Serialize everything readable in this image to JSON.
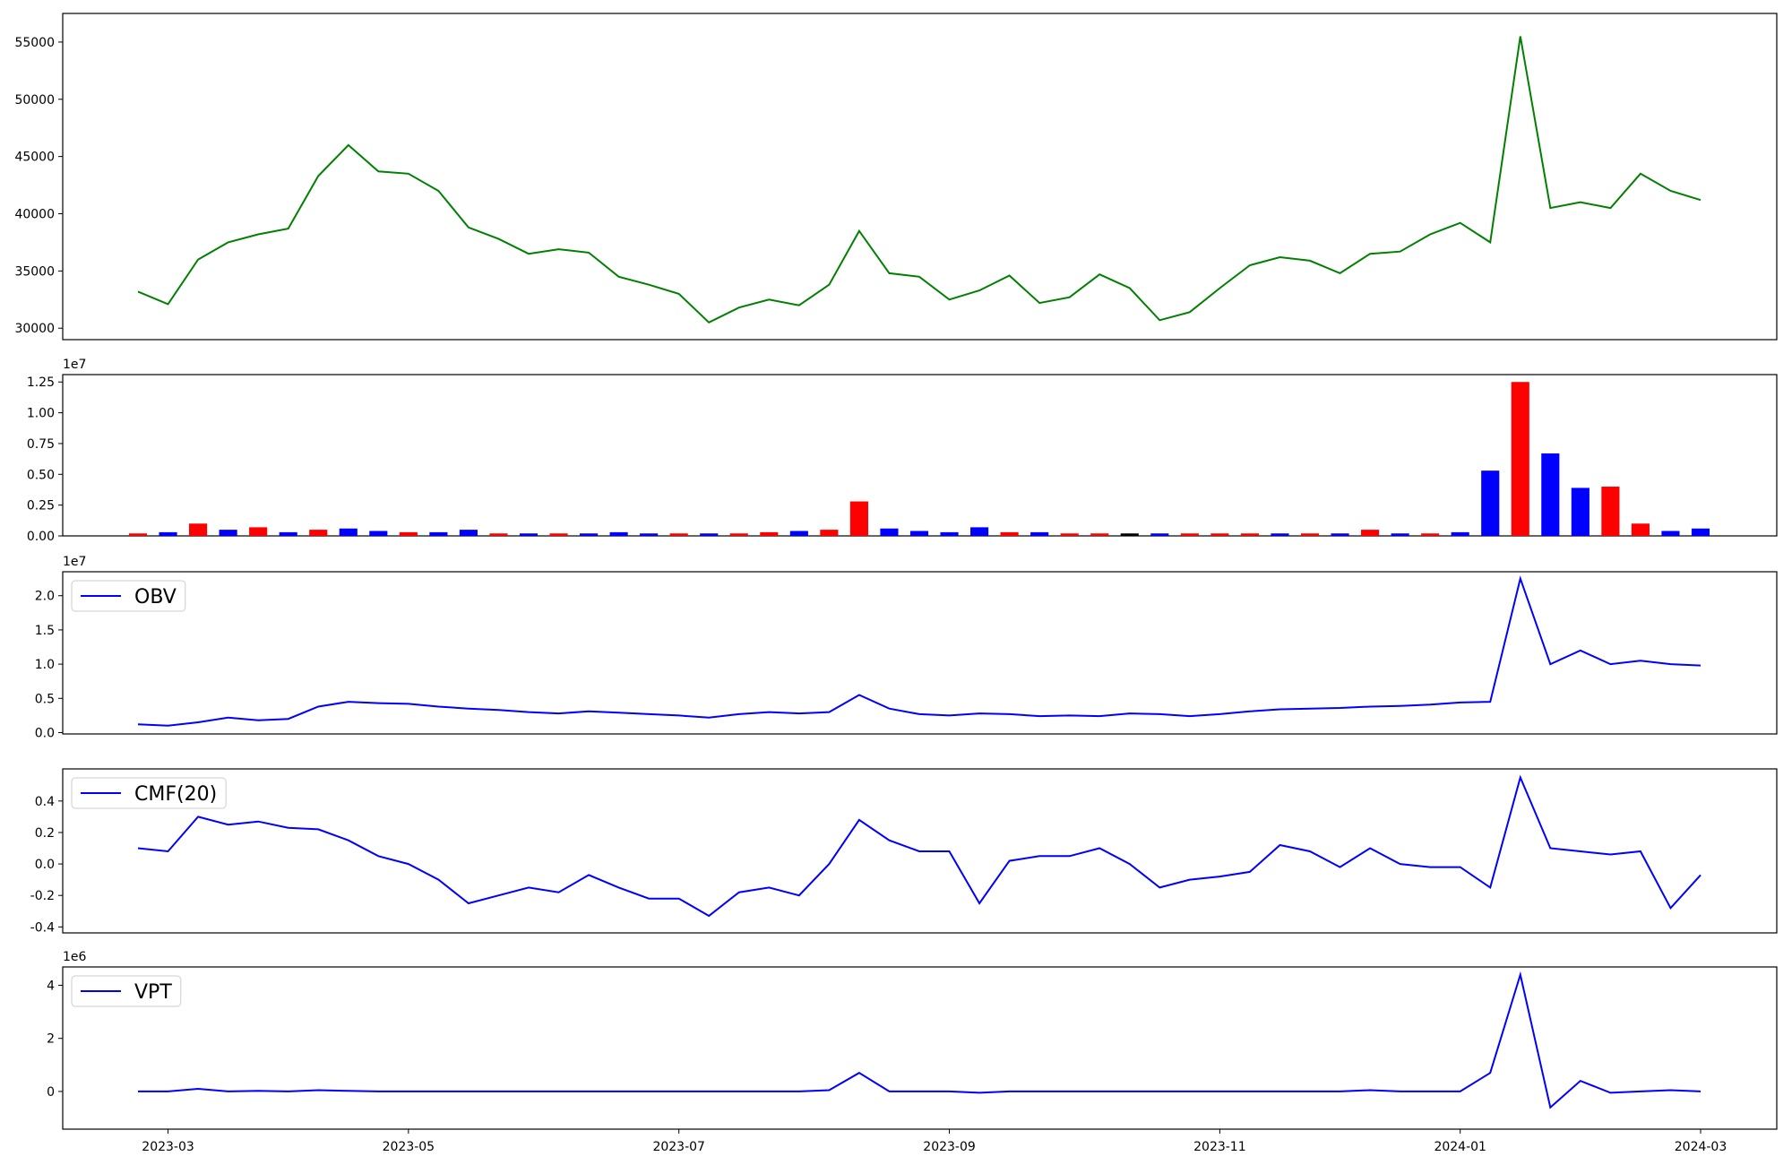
{
  "chart_data": [
    {
      "type": "line",
      "ylim": [
        29000,
        57500
      ],
      "yticks": [
        30000,
        35000,
        40000,
        45000,
        50000,
        55000
      ],
      "series": [
        {
          "color": "#008000",
          "values": [
            33200,
            32100,
            36000,
            37500,
            38200,
            38700,
            43300,
            46000,
            43700,
            43500,
            42000,
            38800,
            37800,
            36500,
            36900,
            36600,
            34500,
            33800,
            33000,
            30500,
            31800,
            32500,
            32000,
            33800,
            38500,
            34800,
            34500,
            32500,
            33300,
            34600,
            32200,
            32700,
            34700,
            33500,
            30700,
            31400,
            33500,
            35500,
            36200,
            35900,
            34800,
            36500,
            36700,
            38200,
            39200,
            37500,
            55500,
            40500,
            41000,
            40500,
            43500,
            42000,
            41200
          ]
        }
      ]
    },
    {
      "type": "bar",
      "offset_label": "1e7",
      "ylim": [
        0,
        1.31
      ],
      "yticks": [
        {
          "value": 0,
          "label": "0.00"
        },
        0.25,
        {
          "value": 0.5,
          "label": "0.50"
        },
        0.75,
        {
          "value": 1,
          "label": "1.00"
        },
        1.25
      ],
      "values": [
        0.02,
        0.03,
        0.1,
        0.05,
        0.07,
        0.03,
        0.05,
        0.06,
        0.04,
        0.03,
        0.03,
        0.05,
        0.02,
        0.02,
        0.02,
        0.02,
        0.03,
        0.02,
        0.02,
        0.02,
        0.02,
        0.03,
        0.04,
        0.05,
        0.28,
        0.06,
        0.04,
        0.03,
        0.07,
        0.03,
        0.03,
        0.02,
        0.02,
        0.02,
        0.02,
        0.02,
        0.02,
        0.02,
        0.02,
        0.02,
        0.02,
        0.05,
        0.02,
        0.02,
        0.03,
        0.53,
        1.25,
        0.67,
        0.39,
        0.4,
        0.1,
        0.04,
        0.06
      ],
      "colors": [
        "#ff0000",
        "#0000ff",
        "#ff0000",
        "#0000ff",
        "#ff0000",
        "#0000ff",
        "#ff0000",
        "#0000ff",
        "#0000ff",
        "#ff0000",
        "#0000ff",
        "#0000ff",
        "#ff0000",
        "#0000ff",
        "#ff0000",
        "#0000ff",
        "#0000ff",
        "#0000ff",
        "#ff0000",
        "#0000ff",
        "#ff0000",
        "#ff0000",
        "#0000ff",
        "#ff0000",
        "#ff0000",
        "#0000ff",
        "#0000ff",
        "#0000ff",
        "#0000ff",
        "#ff0000",
        "#0000ff",
        "#ff0000",
        "#ff0000",
        "#000000",
        "#0000ff",
        "#ff0000",
        "#ff0000",
        "#ff0000",
        "#0000ff",
        "#ff0000",
        "#0000ff",
        "#ff0000",
        "#0000ff",
        "#ff0000",
        "#0000ff",
        "#0000ff",
        "#ff0000",
        "#0000ff",
        "#0000ff",
        "#ff0000",
        "#ff0000",
        "#0000ff",
        "#0000ff"
      ]
    },
    {
      "type": "line",
      "offset_label": "1e7",
      "ylim": [
        -0.02,
        2.35
      ],
      "yticks": [
        {
          "value": 0,
          "label": "0.0"
        },
        0.5,
        {
          "value": 1,
          "label": "1.0"
        },
        1.5,
        {
          "value": 2,
          "label": "2.0"
        }
      ],
      "series": [
        {
          "name": "OBV",
          "color": "#0000ff",
          "values": [
            0.12,
            0.1,
            0.15,
            0.22,
            0.18,
            0.2,
            0.38,
            0.45,
            0.43,
            0.42,
            0.38,
            0.35,
            0.33,
            0.3,
            0.28,
            0.31,
            0.29,
            0.27,
            0.25,
            0.22,
            0.27,
            0.3,
            0.28,
            0.3,
            0.55,
            0.35,
            0.27,
            0.25,
            0.28,
            0.27,
            0.24,
            0.25,
            0.24,
            0.28,
            0.27,
            0.24,
            0.27,
            0.31,
            0.34,
            0.35,
            0.36,
            0.38,
            0.39,
            0.41,
            0.44,
            0.45,
            2.25,
            1.0,
            1.2,
            1.0,
            1.05,
            1.0,
            0.98
          ]
        }
      ]
    },
    {
      "type": "line",
      "ylim": [
        -0.438,
        0.604
      ],
      "yticks": [
        -0.4,
        -0.2,
        {
          "value": 0,
          "label": "0.0"
        },
        0.2,
        0.4
      ],
      "series": [
        {
          "name": "CMF(20)",
          "color": "#0000ff",
          "values": [
            0.1,
            0.08,
            0.3,
            0.25,
            0.27,
            0.23,
            0.22,
            0.15,
            0.05,
            0.0,
            -0.1,
            -0.25,
            -0.2,
            -0.15,
            -0.18,
            -0.07,
            -0.15,
            -0.22,
            -0.22,
            -0.33,
            -0.18,
            -0.15,
            -0.2,
            0.0,
            0.28,
            0.15,
            0.08,
            0.08,
            -0.25,
            0.02,
            0.05,
            0.05,
            0.1,
            0.0,
            -0.15,
            -0.1,
            -0.08,
            -0.05,
            0.12,
            0.08,
            -0.02,
            0.1,
            0.0,
            -0.02,
            -0.02,
            -0.15,
            0.55,
            0.1,
            0.08,
            0.06,
            0.08,
            -0.28,
            -0.07
          ]
        }
      ]
    },
    {
      "type": "line",
      "offset_label": "1e6",
      "ylim": [
        -1.42,
        4.69
      ],
      "yticks": [
        0,
        2,
        4
      ],
      "categories": [
        null,
        "2023-03",
        null,
        null,
        null,
        null,
        null,
        null,
        null,
        "2023-05",
        null,
        null,
        null,
        null,
        null,
        null,
        null,
        null,
        "2023-07",
        null,
        null,
        null,
        null,
        null,
        null,
        null,
        null,
        "2023-09",
        null,
        null,
        null,
        null,
        null,
        null,
        null,
        null,
        "2023-11",
        null,
        null,
        null,
        null,
        null,
        null,
        null,
        "2024-01",
        null,
        null,
        null,
        null,
        null,
        null,
        null,
        "2024-03"
      ],
      "series": [
        {
          "name": "VPT",
          "color": "#0000ff",
          "values": [
            0,
            0,
            0.1,
            0,
            0.02,
            0,
            0.05,
            0.02,
            0,
            0,
            0,
            0,
            0,
            0,
            0,
            0,
            0,
            0,
            0,
            0,
            0,
            0,
            0,
            0.05,
            0.7,
            0,
            0,
            0,
            -0.05,
            0,
            0,
            0,
            0,
            0,
            0,
            0,
            0,
            0,
            0,
            0,
            0,
            0.05,
            0,
            0,
            0,
            0.7,
            4.4,
            -0.6,
            0.4,
            -0.05,
            0,
            0.05,
            0
          ]
        }
      ]
    }
  ]
}
